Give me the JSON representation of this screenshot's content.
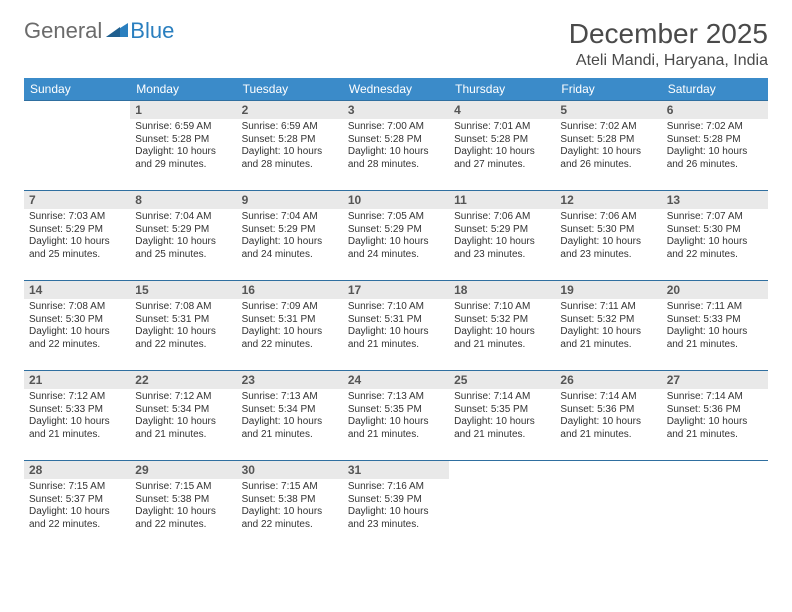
{
  "logo": {
    "general": "General",
    "blue": "Blue",
    "tri_color": "#2a7fbf"
  },
  "title": "December 2025",
  "location": "Ateli Mandi, Haryana, India",
  "colors": {
    "header_bg": "#3b8bc9",
    "header_fg": "#ffffff",
    "row_border": "#2f6fa0",
    "daynum_bg": "#e9e9e9",
    "text": "#333333",
    "background": "#ffffff"
  },
  "font": {
    "family": "Arial",
    "daybody_size": 10,
    "daynum_size": 12,
    "title_size": 28,
    "location_size": 16,
    "weekday_size": 12
  },
  "weekdays": [
    "Sunday",
    "Monday",
    "Tuesday",
    "Wednesday",
    "Thursday",
    "Friday",
    "Saturday"
  ],
  "first_weekday_index": 1,
  "num_days": 31,
  "days": {
    "1": {
      "sunrise": "6:59 AM",
      "sunset": "5:28 PM",
      "daylight": "10 hours and 29 minutes."
    },
    "2": {
      "sunrise": "6:59 AM",
      "sunset": "5:28 PM",
      "daylight": "10 hours and 28 minutes."
    },
    "3": {
      "sunrise": "7:00 AM",
      "sunset": "5:28 PM",
      "daylight": "10 hours and 28 minutes."
    },
    "4": {
      "sunrise": "7:01 AM",
      "sunset": "5:28 PM",
      "daylight": "10 hours and 27 minutes."
    },
    "5": {
      "sunrise": "7:02 AM",
      "sunset": "5:28 PM",
      "daylight": "10 hours and 26 minutes."
    },
    "6": {
      "sunrise": "7:02 AM",
      "sunset": "5:28 PM",
      "daylight": "10 hours and 26 minutes."
    },
    "7": {
      "sunrise": "7:03 AM",
      "sunset": "5:29 PM",
      "daylight": "10 hours and 25 minutes."
    },
    "8": {
      "sunrise": "7:04 AM",
      "sunset": "5:29 PM",
      "daylight": "10 hours and 25 minutes."
    },
    "9": {
      "sunrise": "7:04 AM",
      "sunset": "5:29 PM",
      "daylight": "10 hours and 24 minutes."
    },
    "10": {
      "sunrise": "7:05 AM",
      "sunset": "5:29 PM",
      "daylight": "10 hours and 24 minutes."
    },
    "11": {
      "sunrise": "7:06 AM",
      "sunset": "5:29 PM",
      "daylight": "10 hours and 23 minutes."
    },
    "12": {
      "sunrise": "7:06 AM",
      "sunset": "5:30 PM",
      "daylight": "10 hours and 23 minutes."
    },
    "13": {
      "sunrise": "7:07 AM",
      "sunset": "5:30 PM",
      "daylight": "10 hours and 22 minutes."
    },
    "14": {
      "sunrise": "7:08 AM",
      "sunset": "5:30 PM",
      "daylight": "10 hours and 22 minutes."
    },
    "15": {
      "sunrise": "7:08 AM",
      "sunset": "5:31 PM",
      "daylight": "10 hours and 22 minutes."
    },
    "16": {
      "sunrise": "7:09 AM",
      "sunset": "5:31 PM",
      "daylight": "10 hours and 22 minutes."
    },
    "17": {
      "sunrise": "7:10 AM",
      "sunset": "5:31 PM",
      "daylight": "10 hours and 21 minutes."
    },
    "18": {
      "sunrise": "7:10 AM",
      "sunset": "5:32 PM",
      "daylight": "10 hours and 21 minutes."
    },
    "19": {
      "sunrise": "7:11 AM",
      "sunset": "5:32 PM",
      "daylight": "10 hours and 21 minutes."
    },
    "20": {
      "sunrise": "7:11 AM",
      "sunset": "5:33 PM",
      "daylight": "10 hours and 21 minutes."
    },
    "21": {
      "sunrise": "7:12 AM",
      "sunset": "5:33 PM",
      "daylight": "10 hours and 21 minutes."
    },
    "22": {
      "sunrise": "7:12 AM",
      "sunset": "5:34 PM",
      "daylight": "10 hours and 21 minutes."
    },
    "23": {
      "sunrise": "7:13 AM",
      "sunset": "5:34 PM",
      "daylight": "10 hours and 21 minutes."
    },
    "24": {
      "sunrise": "7:13 AM",
      "sunset": "5:35 PM",
      "daylight": "10 hours and 21 minutes."
    },
    "25": {
      "sunrise": "7:14 AM",
      "sunset": "5:35 PM",
      "daylight": "10 hours and 21 minutes."
    },
    "26": {
      "sunrise": "7:14 AM",
      "sunset": "5:36 PM",
      "daylight": "10 hours and 21 minutes."
    },
    "27": {
      "sunrise": "7:14 AM",
      "sunset": "5:36 PM",
      "daylight": "10 hours and 21 minutes."
    },
    "28": {
      "sunrise": "7:15 AM",
      "sunset": "5:37 PM",
      "daylight": "10 hours and 22 minutes."
    },
    "29": {
      "sunrise": "7:15 AM",
      "sunset": "5:38 PM",
      "daylight": "10 hours and 22 minutes."
    },
    "30": {
      "sunrise": "7:15 AM",
      "sunset": "5:38 PM",
      "daylight": "10 hours and 22 minutes."
    },
    "31": {
      "sunrise": "7:16 AM",
      "sunset": "5:39 PM",
      "daylight": "10 hours and 23 minutes."
    }
  },
  "labels": {
    "sunrise": "Sunrise:",
    "sunset": "Sunset:",
    "daylight": "Daylight:"
  }
}
